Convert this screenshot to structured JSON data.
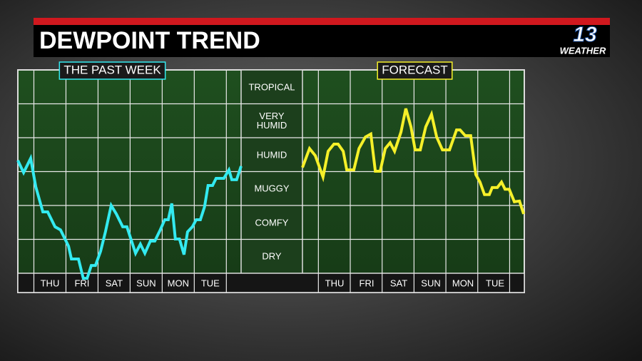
{
  "header": {
    "title": "DEWPOINT TREND",
    "logo": "13",
    "logo_caption": "WEATHER"
  },
  "chart_data": [
    {
      "type": "line",
      "title": "THE PAST WEEK",
      "color": "#33eaf0",
      "xlim": [
        0,
        6.96
      ],
      "ylim": [
        0,
        6
      ],
      "xticks": [
        {
          "value": 1,
          "label": "THU"
        },
        {
          "value": 2,
          "label": "FRI"
        },
        {
          "value": 3,
          "label": "SAT"
        },
        {
          "value": 4,
          "label": "SUN"
        },
        {
          "value": 5,
          "label": "MON"
        },
        {
          "value": 6,
          "label": "TUE"
        }
      ],
      "yticks": [
        {
          "value": 0.5,
          "label": "DRY"
        },
        {
          "value": 1.5,
          "label": "COMFY"
        },
        {
          "value": 2.5,
          "label": "MUGGY"
        },
        {
          "value": 3.5,
          "label": "HUMID"
        },
        {
          "value": 4.5,
          "label": "VERY\nHUMID"
        },
        {
          "value": 5.5,
          "label": "TROPICAL"
        }
      ],
      "x": [
        0,
        0.18,
        0.4,
        0.56,
        0.78,
        0.93,
        1.16,
        1.33,
        1.58,
        1.67,
        1.89,
        2.04,
        2.16,
        2.29,
        2.42,
        2.58,
        2.73,
        2.91,
        3.07,
        3.27,
        3.4,
        3.67,
        3.82,
        3.96,
        4.13,
        4.27,
        4.44,
        4.58,
        4.69,
        4.8,
        4.91,
        5.04,
        5.18,
        5.29,
        5.44,
        5.56,
        5.69,
        5.82,
        5.93,
        6.07,
        6.18,
        6.42,
        6.58,
        6.67,
        6.82,
        6.96
      ],
      "values": [
        3.33,
        2.97,
        3.39,
        2.55,
        1.81,
        1.81,
        1.37,
        1.28,
        0.8,
        0.42,
        0.42,
        -0.15,
        -0.15,
        0.23,
        0.23,
        0.65,
        1.22,
        2.0,
        1.75,
        1.37,
        1.37,
        0.59,
        0.86,
        0.59,
        0.95,
        0.95,
        1.28,
        1.58,
        1.58,
        2.06,
        1.01,
        1.01,
        0.55,
        1.22,
        1.37,
        1.58,
        1.58,
        1.96,
        2.59,
        2.59,
        2.8,
        2.8,
        3.05,
        2.76,
        2.76,
        3.16
      ]
    },
    {
      "type": "line",
      "title": "FORECAST",
      "color": "#f5f029",
      "xlim": [
        0,
        6.91
      ],
      "ylim": [
        0,
        6
      ],
      "xticks": [
        {
          "value": 1,
          "label": "THU"
        },
        {
          "value": 2,
          "label": "FRI"
        },
        {
          "value": 3,
          "label": "SAT"
        },
        {
          "value": 4,
          "label": "SUN"
        },
        {
          "value": 5,
          "label": "MON"
        },
        {
          "value": 6,
          "label": "TUE"
        }
      ],
      "x": [
        0,
        0.22,
        0.4,
        0.64,
        0.8,
        0.98,
        1.11,
        1.27,
        1.38,
        1.6,
        1.76,
        1.96,
        2.13,
        2.27,
        2.42,
        2.58,
        2.73,
        2.87,
        3.07,
        3.22,
        3.38,
        3.51,
        3.67,
        3.84,
        4.02,
        4.18,
        4.36,
        4.58,
        4.8,
        4.91,
        5.07,
        5.24,
        5.4,
        5.53,
        5.67,
        5.82,
        5.91,
        6.07,
        6.2,
        6.31,
        6.44,
        6.6,
        6.76,
        6.89
      ],
      "values": [
        3.12,
        3.68,
        3.47,
        2.84,
        3.6,
        3.81,
        3.81,
        3.6,
        3.05,
        3.05,
        3.68,
        4.02,
        4.11,
        3.01,
        3.01,
        3.68,
        3.85,
        3.6,
        4.17,
        4.86,
        4.32,
        3.64,
        3.64,
        4.32,
        4.69,
        4.02,
        3.64,
        3.64,
        4.23,
        4.23,
        4.06,
        4.06,
        2.91,
        2.69,
        2.32,
        2.32,
        2.53,
        2.53,
        2.69,
        2.48,
        2.48,
        2.11,
        2.13,
        1.75
      ]
    }
  ]
}
